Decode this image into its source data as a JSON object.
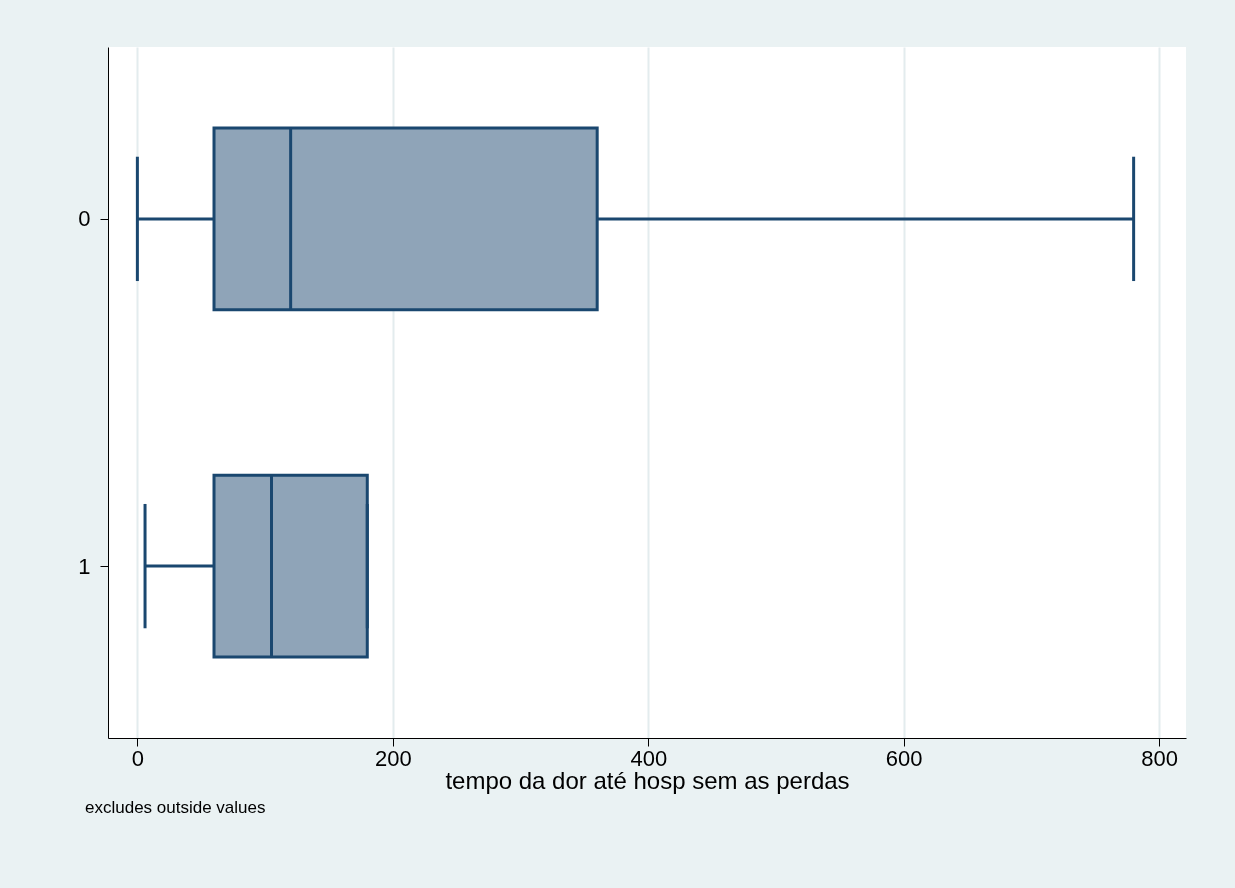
{
  "chart_data": {
    "type": "box",
    "orientation": "horizontal",
    "categories": [
      "0",
      "1"
    ],
    "series": [
      {
        "color": "#8fa4b8",
        "boxes": [
          {
            "low": 0,
            "q1": 60,
            "median": 120,
            "q3": 360,
            "high": 780
          },
          {
            "low": 6,
            "q1": 60,
            "median": 105,
            "q3": 180,
            "high": 180
          }
        ]
      }
    ],
    "xlabel": "tempo da dor até hosp sem as perdas",
    "xlim": [
      -23,
      821
    ],
    "xticks": [
      0,
      200,
      400,
      600,
      800
    ],
    "grid": "x",
    "annotations": [
      "excludes outside values"
    ]
  }
}
